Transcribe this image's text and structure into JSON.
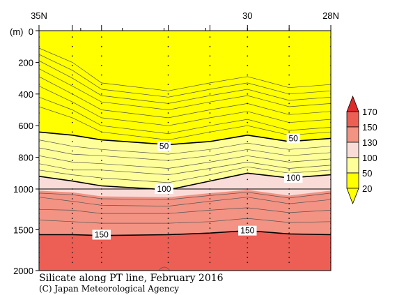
{
  "chart_data": {
    "type": "contour",
    "title": "Silicate along PT line, February 2016",
    "credit": "(C) Japan Meteorological Agency",
    "x_axis": {
      "ticks": [
        "35N",
        "30",
        "28N"
      ],
      "tick_lat": [
        35,
        30,
        28
      ],
      "range_lat": [
        35,
        28
      ]
    },
    "y_axis": {
      "unit_label": "(m)",
      "ticks": [
        "0",
        "200",
        "400",
        "600",
        "800",
        "1000",
        "1500",
        "2000"
      ],
      "tick_depths": [
        0,
        200,
        400,
        600,
        800,
        1000,
        1500,
        2000
      ],
      "range": [
        0,
        2000
      ],
      "scale_break": "linear 0-1000 m, compressed 1000-2000 m"
    },
    "station_lat": [
      35,
      34.2,
      33.5,
      31.9,
      30.9,
      30,
      29.0,
      28
    ],
    "contour_levels": [
      10,
      20,
      30,
      40,
      50,
      60,
      70,
      80,
      90,
      100,
      110,
      120,
      130,
      140,
      150,
      160,
      170
    ],
    "labeled_contours": [
      {
        "level": 50,
        "text": "50",
        "lat": 32.0,
        "depth": 730
      },
      {
        "level": 50,
        "text": "50",
        "lat": 28.9,
        "depth": 680
      },
      {
        "level": 100,
        "text": "100",
        "lat": 32.0,
        "depth": 1000
      },
      {
        "level": 100,
        "text": "100",
        "lat": 28.9,
        "depth": 930
      },
      {
        "level": 150,
        "text": "150",
        "lat": 33.5,
        "depth": 1560
      },
      {
        "level": 150,
        "text": "150",
        "lat": 30.0,
        "depth": 1510
      }
    ],
    "fill_colors": {
      "0-50": "#ffff00",
      "50-100": "#ffff9a",
      "100-130": "#f9dcd8",
      "130-150": "#f29383",
      "150-170": "#ed5e55"
    },
    "colorbar": {
      "labels": [
        "170",
        "150",
        "130",
        "100",
        "50",
        "20"
      ],
      "label_values": [
        170,
        150,
        130,
        100,
        50,
        20
      ],
      "segments": [
        {
          "from": 150,
          "to": 170,
          "color": "#ed5e55"
        },
        {
          "from": 130,
          "to": 150,
          "color": "#f29383"
        },
        {
          "from": 100,
          "to": 130,
          "color": "#f9dcd8"
        },
        {
          "from": 50,
          "to": 100,
          "color": "#ffff9a"
        },
        {
          "from": 20,
          "to": 50,
          "color": "#ffff00"
        }
      ]
    }
  }
}
